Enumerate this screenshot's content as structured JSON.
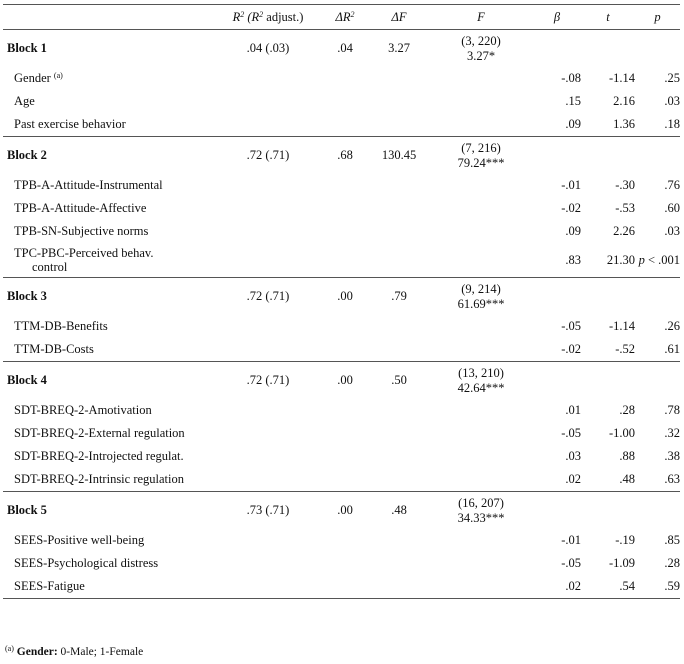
{
  "headers": {
    "r2_label": "R",
    "r2_sup": "2",
    "r2_paren_open": " (",
    "r2_adj_label": "R",
    "r2_adj_sup": "2",
    "r2_adj_suffix": " adjust.)",
    "delta_r2_label": "ΔR",
    "delta_r2_sup": "2",
    "delta_f": "ΔF",
    "f": "F",
    "beta": "β",
    "t": "t",
    "p": "p"
  },
  "blocks": [
    {
      "name": "Block 1",
      "r2": ".04 (.03)",
      "delta_r2": ".04",
      "delta_f": "3.27",
      "f_df": "(3, 220)",
      "f_value": "3.27*",
      "vars": [
        {
          "name": "Gender",
          "sup": "(a)",
          "beta": "-.08",
          "t": "-1.14",
          "p": ".25"
        },
        {
          "name": "Age",
          "beta": ".15",
          "t": "2.16",
          "p": ".03"
        },
        {
          "name": "Past exercise behavior",
          "beta": ".09",
          "t": "1.36",
          "p": ".18"
        }
      ]
    },
    {
      "name": "Block 2",
      "r2": ".72 (.71)",
      "delta_r2": ".68",
      "delta_f": "130.45",
      "f_df": "(7, 216)",
      "f_value": "79.24***",
      "vars": [
        {
          "name": "TPB-A-Attitude-Instrumental",
          "beta": "-.01",
          "t": "-.30",
          "p": ".76"
        },
        {
          "name": "TPB-A-Attitude-Affective",
          "beta": "-.02",
          "t": "-.53",
          "p": ".60"
        },
        {
          "name": "TPB-SN-Subjective norms",
          "beta": ".09",
          "t": "2.26",
          "p": ".03"
        },
        {
          "name": "TPC-PBC-Perceived behav.",
          "name2": "control",
          "beta": ".83",
          "t": "21.30",
          "p_italic": "p",
          "p": " < .001"
        }
      ]
    },
    {
      "name": "Block 3",
      "r2": ".72 (.71)",
      "delta_r2": ".00",
      "delta_f": ".79",
      "f_df": "(9, 214)",
      "f_value": "61.69***",
      "vars": [
        {
          "name": "TTM-DB-Benefits",
          "beta": "-.05",
          "t": "-1.14",
          "p": ".26"
        },
        {
          "name": "TTM-DB-Costs",
          "beta": "-.02",
          "t": "-.52",
          "p": ".61"
        }
      ]
    },
    {
      "name": "Block 4",
      "r2": ".72 (.71)",
      "delta_r2": ".00",
      "delta_f": ".50",
      "f_df": "(13, 210)",
      "f_value": "42.64***",
      "vars": [
        {
          "name": "SDT-BREQ-2-Amotivation",
          "beta": ".01",
          "t": ".28",
          "p": ".78"
        },
        {
          "name": "SDT-BREQ-2-External regulation",
          "beta": "-.05",
          "t": "-1.00",
          "p": ".32"
        },
        {
          "name": "SDT-BREQ-2-Introjected regulat.",
          "beta": ".03",
          "t": ".88",
          "p": ".38"
        },
        {
          "name": "SDT-BREQ-2-Intrinsic regulation",
          "beta": ".02",
          "t": ".48",
          "p": ".63"
        }
      ]
    },
    {
      "name": "Block 5",
      "r2": ".73 (.71)",
      "delta_r2": ".00",
      "delta_f": ".48",
      "f_df": "(16, 207)",
      "f_value": "34.33***",
      "vars": [
        {
          "name": "SEES-Positive well-being",
          "beta": "-.01",
          "t": "-.19",
          "p": ".85"
        },
        {
          "name": "SEES-Psychological distress",
          "beta": "-.05",
          "t": "-1.09",
          "p": ".28"
        },
        {
          "name": "SEES-Fatigue",
          "beta": ".02",
          "t": ".54",
          "p": ".59"
        }
      ]
    }
  ],
  "footnote": {
    "marker": "(a)",
    "label": "Gender:",
    "text": " 0-Male; 1-Female"
  }
}
